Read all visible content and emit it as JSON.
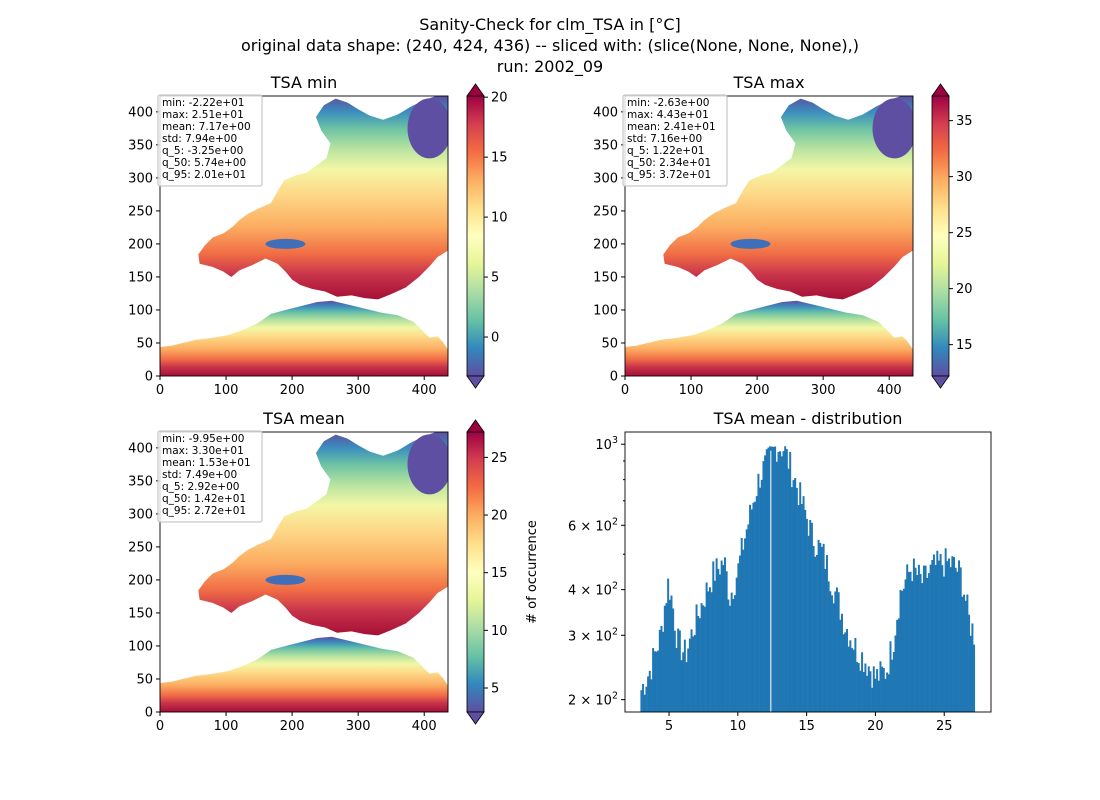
{
  "figure": {
    "title_lines": [
      "Sanity-Check for clm_TSA in [°C]",
      "original data shape: (240, 424, 436) -- sliced with: (slice(None, None, None),)",
      "run: 2002_09"
    ]
  },
  "chart_data": [
    {
      "type": "heatmap",
      "title": "TSA min",
      "xlim": [
        0,
        436
      ],
      "ylim": [
        0,
        424
      ],
      "xticks": [
        "0",
        "100",
        "200",
        "300",
        "400"
      ],
      "yticks": [
        "0",
        "50",
        "100",
        "150",
        "200",
        "250",
        "300",
        "350",
        "400"
      ],
      "colorbar": {
        "min": -3.25,
        "max": 20.1,
        "ticks": [
          "0",
          "5",
          "10",
          "15",
          "20"
        ],
        "cmap": "Spectral_r",
        "extend": "both"
      },
      "stats": [
        "min: -2.22e+01",
        "max: 2.51e+01",
        "mean: 7.17e+00",
        "std: 7.94e+00",
        "q_5: -3.25e+00",
        "q_50: 5.74e+00",
        "q_95: 2.01e+01"
      ]
    },
    {
      "type": "heatmap",
      "title": "TSA max",
      "xlim": [
        0,
        436
      ],
      "ylim": [
        0,
        424
      ],
      "xticks": [
        "0",
        "100",
        "200",
        "300",
        "400"
      ],
      "yticks": [
        "0",
        "50",
        "100",
        "150",
        "200",
        "250",
        "300",
        "350",
        "400"
      ],
      "colorbar": {
        "min": 12.2,
        "max": 37.2,
        "ticks": [
          "15",
          "20",
          "25",
          "30",
          "35"
        ],
        "cmap": "Spectral_r",
        "extend": "both"
      },
      "stats": [
        "min: -2.63e+00",
        "max: 4.43e+01",
        "mean: 2.41e+01",
        "std: 7.16e+00",
        "q_5: 1.22e+01",
        "q_50: 2.34e+01",
        "q_95: 3.72e+01"
      ]
    },
    {
      "type": "heatmap",
      "title": "TSA mean",
      "xlim": [
        0,
        436
      ],
      "ylim": [
        0,
        424
      ],
      "xticks": [
        "0",
        "100",
        "200",
        "300",
        "400"
      ],
      "yticks": [
        "0",
        "50",
        "100",
        "150",
        "200",
        "250",
        "300",
        "350",
        "400"
      ],
      "colorbar": {
        "min": 2.92,
        "max": 27.2,
        "ticks": [
          "5",
          "10",
          "15",
          "20",
          "25"
        ],
        "cmap": "Spectral_r",
        "extend": "both"
      },
      "stats": [
        "min: -9.95e+00",
        "max: 3.30e+01",
        "mean: 1.53e+01",
        "std: 7.49e+00",
        "q_5: 2.92e+00",
        "q_50: 1.42e+01",
        "q_95: 2.72e+01"
      ]
    },
    {
      "type": "bar",
      "title": "TSA mean - distribution",
      "ylabel": "# of occurrence",
      "xlabel": "",
      "yscale": "log",
      "xlim": [
        1.8,
        28.4
      ],
      "ylim": [
        185,
        1080
      ],
      "xticks": [
        5,
        10,
        15,
        20,
        25
      ],
      "yticks": [
        {
          "value": 200,
          "base": "2 × 10",
          "exp": "2"
        },
        {
          "value": 300,
          "base": "3 × 10",
          "exp": "2"
        },
        {
          "value": 400,
          "base": "4 × 10",
          "exp": "2"
        },
        {
          "value": 600,
          "base": "6 × 10",
          "exp": "2"
        },
        {
          "value": 1000,
          "base": "10",
          "exp": "3"
        }
      ],
      "bin_start": 2.92,
      "bin_width": 0.1215,
      "anchors": [
        [
          2.92,
          210
        ],
        [
          3.6,
          240
        ],
        [
          4.4,
          300
        ],
        [
          4.95,
          420
        ],
        [
          5.2,
          375
        ],
        [
          5.6,
          290
        ],
        [
          6.2,
          265
        ],
        [
          7.2,
          350
        ],
        [
          8.2,
          440
        ],
        [
          9.0,
          480
        ],
        [
          9.4,
          380
        ],
        [
          10.0,
          450
        ],
        [
          10.8,
          620
        ],
        [
          11.6,
          820
        ],
        [
          12.2,
          900
        ],
        [
          12.8,
          990
        ],
        [
          13.3,
          980
        ],
        [
          13.9,
          850
        ],
        [
          14.6,
          700
        ],
        [
          15.4,
          560
        ],
        [
          16.2,
          500
        ],
        [
          17.0,
          400
        ],
        [
          17.8,
          320
        ],
        [
          18.6,
          275
        ],
        [
          19.3,
          255
        ],
        [
          20.0,
          230
        ],
        [
          20.8,
          240
        ],
        [
          21.3,
          290
        ],
        [
          21.8,
          390
        ],
        [
          22.6,
          460
        ],
        [
          23.4,
          420
        ],
        [
          24.2,
          460
        ],
        [
          25.0,
          475
        ],
        [
          25.6,
          470
        ],
        [
          26.2,
          440
        ],
        [
          26.8,
          330
        ],
        [
          27.2,
          300
        ]
      ],
      "color": "#1f77b4"
    }
  ]
}
